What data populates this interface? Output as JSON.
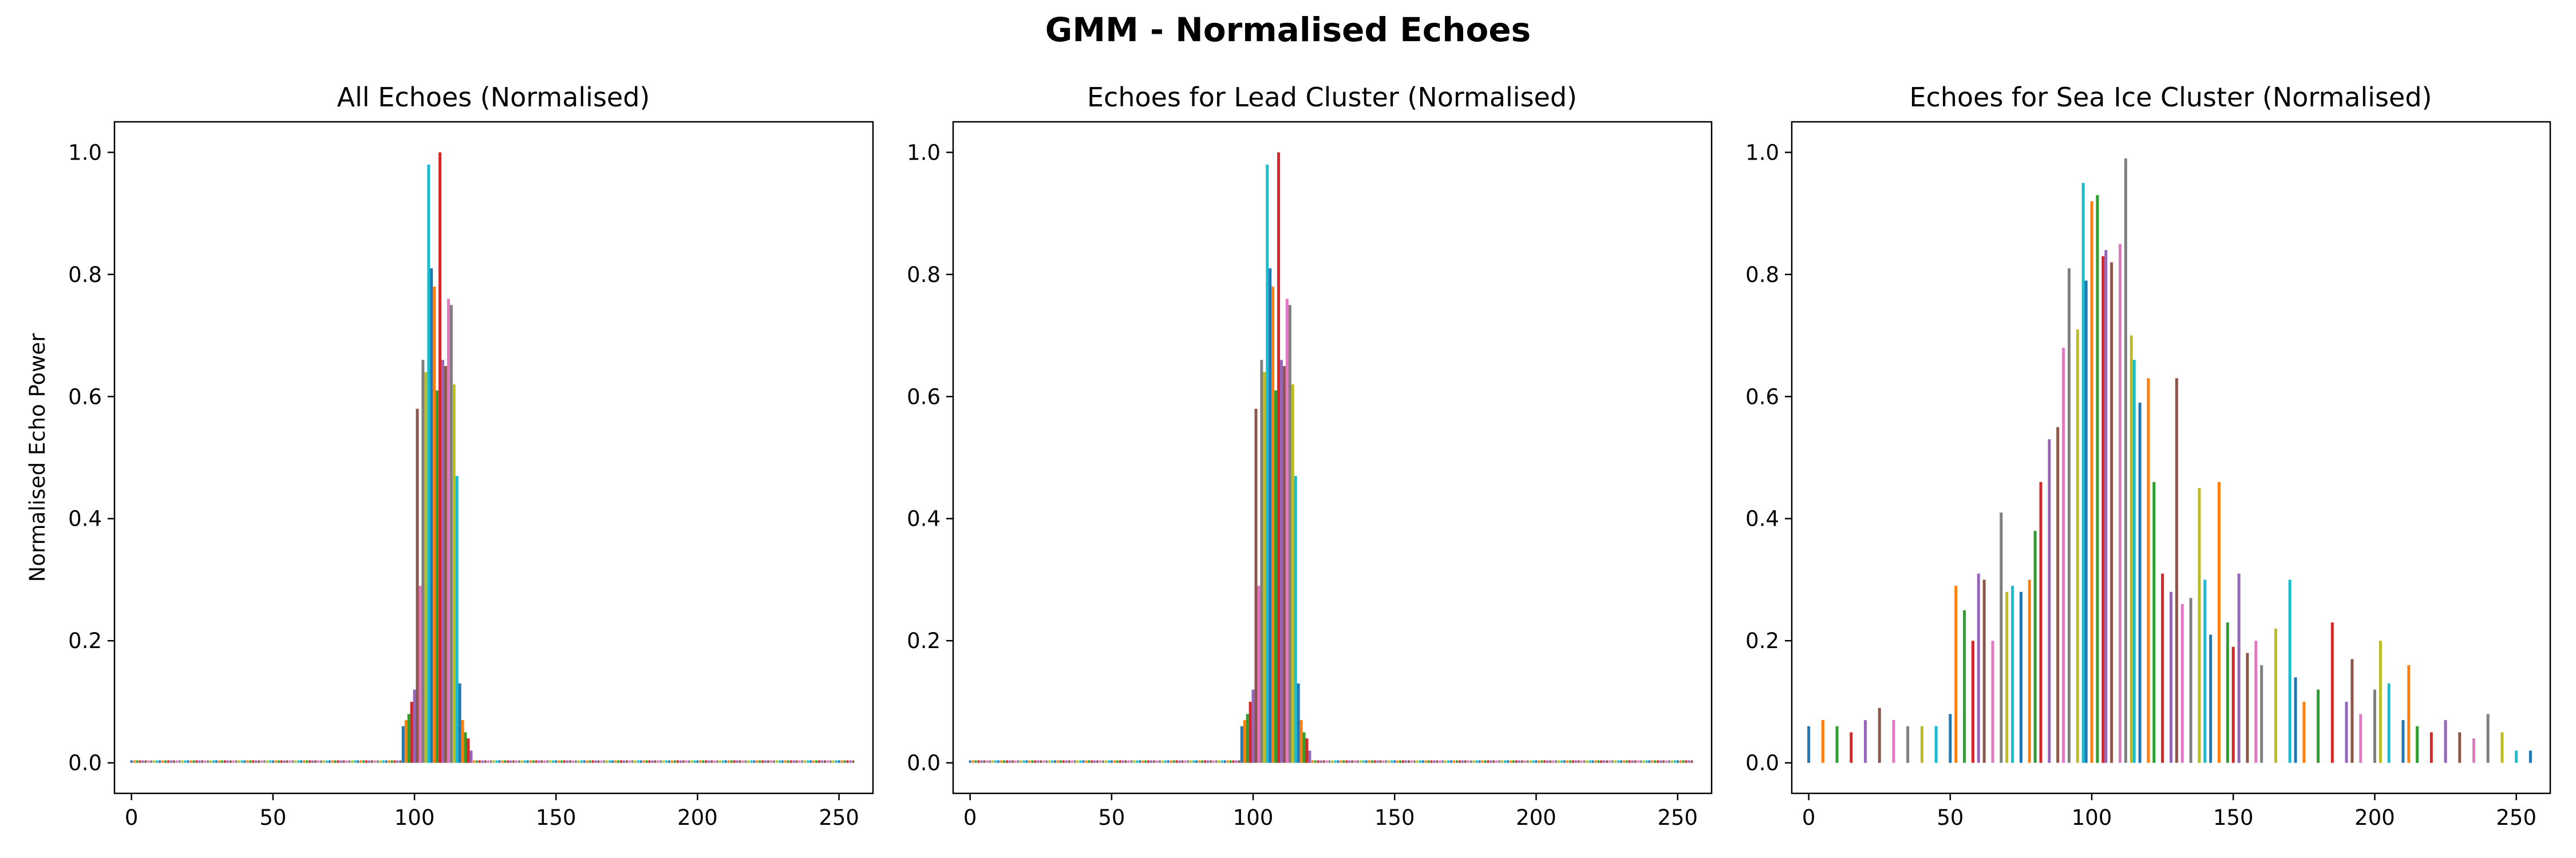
{
  "figure": {
    "title": "GMM - Normalised Echoes"
  },
  "palette": [
    "#1f77b4",
    "#ff7f0e",
    "#2ca02c",
    "#d62728",
    "#9467bd",
    "#8c564b",
    "#e377c2",
    "#7f7f7f",
    "#bcbd22",
    "#17becf"
  ],
  "chart_data": [
    {
      "type": "bar",
      "title": "All Echoes (Normalised)",
      "xlabel": "",
      "ylabel": "Normalised Echo Power",
      "xlim": [
        -6,
        262
      ],
      "ylim": [
        -0.05,
        1.05
      ],
      "xticks": [
        0,
        50,
        100,
        150,
        200,
        250
      ],
      "yticks": [
        0.0,
        0.2,
        0.4,
        0.6,
        0.8,
        1.0
      ],
      "grid": false,
      "x": [
        96,
        97,
        98,
        99,
        100,
        101,
        102,
        103,
        104,
        105,
        106,
        107,
        108,
        109,
        110,
        111,
        112,
        113,
        114,
        115,
        116,
        117,
        118,
        119,
        120
      ],
      "values": [
        0.06,
        0.07,
        0.08,
        0.1,
        0.12,
        0.58,
        0.29,
        0.66,
        0.64,
        0.98,
        0.81,
        0.78,
        0.61,
        1.0,
        0.66,
        0.65,
        0.76,
        0.75,
        0.62,
        0.47,
        0.13,
        0.07,
        0.05,
        0.04,
        0.02
      ],
      "baseline": 0.004
    },
    {
      "type": "bar",
      "title": "Echoes for Lead Cluster (Normalised)",
      "xlabel": "",
      "ylabel": "",
      "xlim": [
        -6,
        262
      ],
      "ylim": [
        -0.05,
        1.05
      ],
      "xticks": [
        0,
        50,
        100,
        150,
        200,
        250
      ],
      "yticks": [
        0.0,
        0.2,
        0.4,
        0.6,
        0.8,
        1.0
      ],
      "grid": false,
      "x": [
        96,
        97,
        98,
        99,
        100,
        101,
        102,
        103,
        104,
        105,
        106,
        107,
        108,
        109,
        110,
        111,
        112,
        113,
        114,
        115,
        116,
        117,
        118,
        119,
        120
      ],
      "values": [
        0.06,
        0.07,
        0.08,
        0.1,
        0.12,
        0.58,
        0.29,
        0.66,
        0.64,
        0.98,
        0.81,
        0.78,
        0.61,
        1.0,
        0.66,
        0.65,
        0.76,
        0.75,
        0.62,
        0.47,
        0.13,
        0.07,
        0.05,
        0.04,
        0.02
      ],
      "baseline": 0.004
    },
    {
      "type": "bar",
      "title": "Echoes for Sea Ice Cluster (Normalised)",
      "xlabel": "",
      "ylabel": "",
      "xlim": [
        -6,
        262
      ],
      "ylim": [
        -0.05,
        1.05
      ],
      "xticks": [
        0,
        50,
        100,
        150,
        200,
        250
      ],
      "yticks": [
        0.0,
        0.2,
        0.4,
        0.6,
        0.8,
        1.0
      ],
      "grid": false,
      "x": [
        0,
        5,
        10,
        15,
        20,
        25,
        30,
        35,
        40,
        45,
        50,
        52,
        55,
        58,
        60,
        62,
        65,
        68,
        70,
        72,
        75,
        78,
        80,
        82,
        85,
        88,
        90,
        92,
        95,
        97,
        98,
        100,
        102,
        104,
        105,
        107,
        110,
        112,
        114,
        115,
        117,
        120,
        122,
        125,
        128,
        130,
        132,
        135,
        138,
        140,
        142,
        145,
        148,
        150,
        152,
        155,
        158,
        160,
        165,
        170,
        172,
        175,
        180,
        185,
        190,
        192,
        195,
        200,
        202,
        205,
        210,
        212,
        215,
        220,
        225,
        230,
        235,
        240,
        245,
        250,
        255
      ],
      "values": [
        0.06,
        0.07,
        0.06,
        0.05,
        0.07,
        0.09,
        0.07,
        0.06,
        0.06,
        0.06,
        0.08,
        0.29,
        0.25,
        0.2,
        0.31,
        0.3,
        0.2,
        0.41,
        0.28,
        0.29,
        0.28,
        0.3,
        0.38,
        0.46,
        0.53,
        0.55,
        0.68,
        0.81,
        0.71,
        0.95,
        0.79,
        0.92,
        0.93,
        0.83,
        0.84,
        0.82,
        0.85,
        0.99,
        0.7,
        0.66,
        0.59,
        0.63,
        0.46,
        0.31,
        0.28,
        0.63,
        0.26,
        0.27,
        0.45,
        0.3,
        0.21,
        0.46,
        0.23,
        0.19,
        0.31,
        0.18,
        0.2,
        0.16,
        0.22,
        0.3,
        0.14,
        0.1,
        0.12,
        0.23,
        0.1,
        0.17,
        0.08,
        0.12,
        0.2,
        0.13,
        0.07,
        0.16,
        0.06,
        0.05,
        0.07,
        0.05,
        0.04,
        0.08,
        0.05,
        0.02,
        0.02
      ]
    }
  ]
}
